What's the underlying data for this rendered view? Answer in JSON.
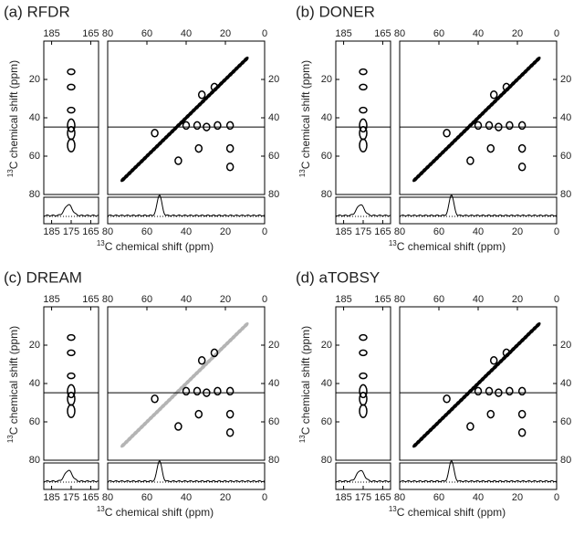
{
  "panels": [
    {
      "label": "(a) RFDR",
      "diagonal_color": "#000000"
    },
    {
      "label": "(b) DONER",
      "diagonal_color": "#000000"
    },
    {
      "label": "(c) DREAM",
      "diagonal_color": "#b4b4b4"
    },
    {
      "label": "(d) aTOBSY",
      "diagonal_color": "#000000"
    }
  ],
  "axes": {
    "isotope": "13",
    "label": "C chemical shift (ppm)",
    "carbonyl_lim": [
      189,
      161
    ],
    "carbonyl_ticks_top": [
      185,
      165
    ],
    "carbonyl_ticks_bottom": [
      185,
      175,
      165
    ],
    "aliphatic_lim": [
      80,
      0
    ],
    "aliphatic_ticks": [
      80,
      60,
      40,
      20,
      0
    ],
    "shift_lim": [
      0,
      80
    ],
    "shift_ticks": [
      20,
      40,
      60,
      80
    ]
  }
}
